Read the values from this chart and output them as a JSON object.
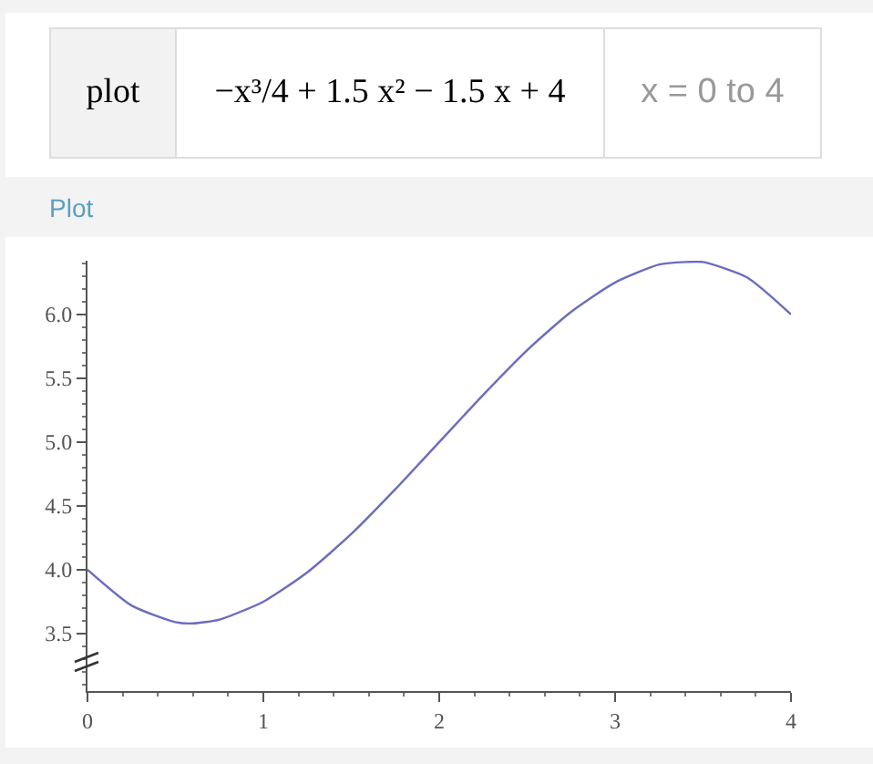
{
  "chart_data": {
    "type": "line",
    "title": "Plot",
    "annotations": [
      "plot",
      "−x³/4 + 1.5 x² − 1.5 x + 4",
      "x = 0 to 4"
    ],
    "x": [
      0,
      0.25,
      0.5,
      0.6,
      0.75,
      1,
      1.25,
      1.5,
      1.75,
      2,
      2.25,
      2.5,
      2.75,
      3,
      3.25,
      3.4,
      3.5,
      3.75,
      4
    ],
    "series": [
      {
        "color": "#6b6bbf",
        "values": [
          4,
          3.72,
          3.59,
          3.58,
          3.61,
          3.75,
          3.98,
          4.28,
          4.63,
          5,
          5.37,
          5.72,
          6.02,
          6.25,
          6.39,
          6.41,
          6.41,
          6.29,
          6
        ]
      }
    ],
    "xlim": [
      0,
      4
    ],
    "xticks": [
      0,
      1,
      2,
      3,
      4
    ],
    "ylim": [
      3.05,
      6.42
    ],
    "yticks": [
      {
        "value": 3.5,
        "label": "3.5"
      },
      {
        "value": 4,
        "label": "4.0"
      },
      {
        "value": 4.5,
        "label": "4.5"
      },
      {
        "value": 5,
        "label": "5.0"
      },
      {
        "value": 5.5,
        "label": "5.5"
      },
      {
        "value": 6,
        "label": "6.0"
      }
    ],
    "grid": false,
    "marker": "none",
    "line_style": "solid"
  }
}
